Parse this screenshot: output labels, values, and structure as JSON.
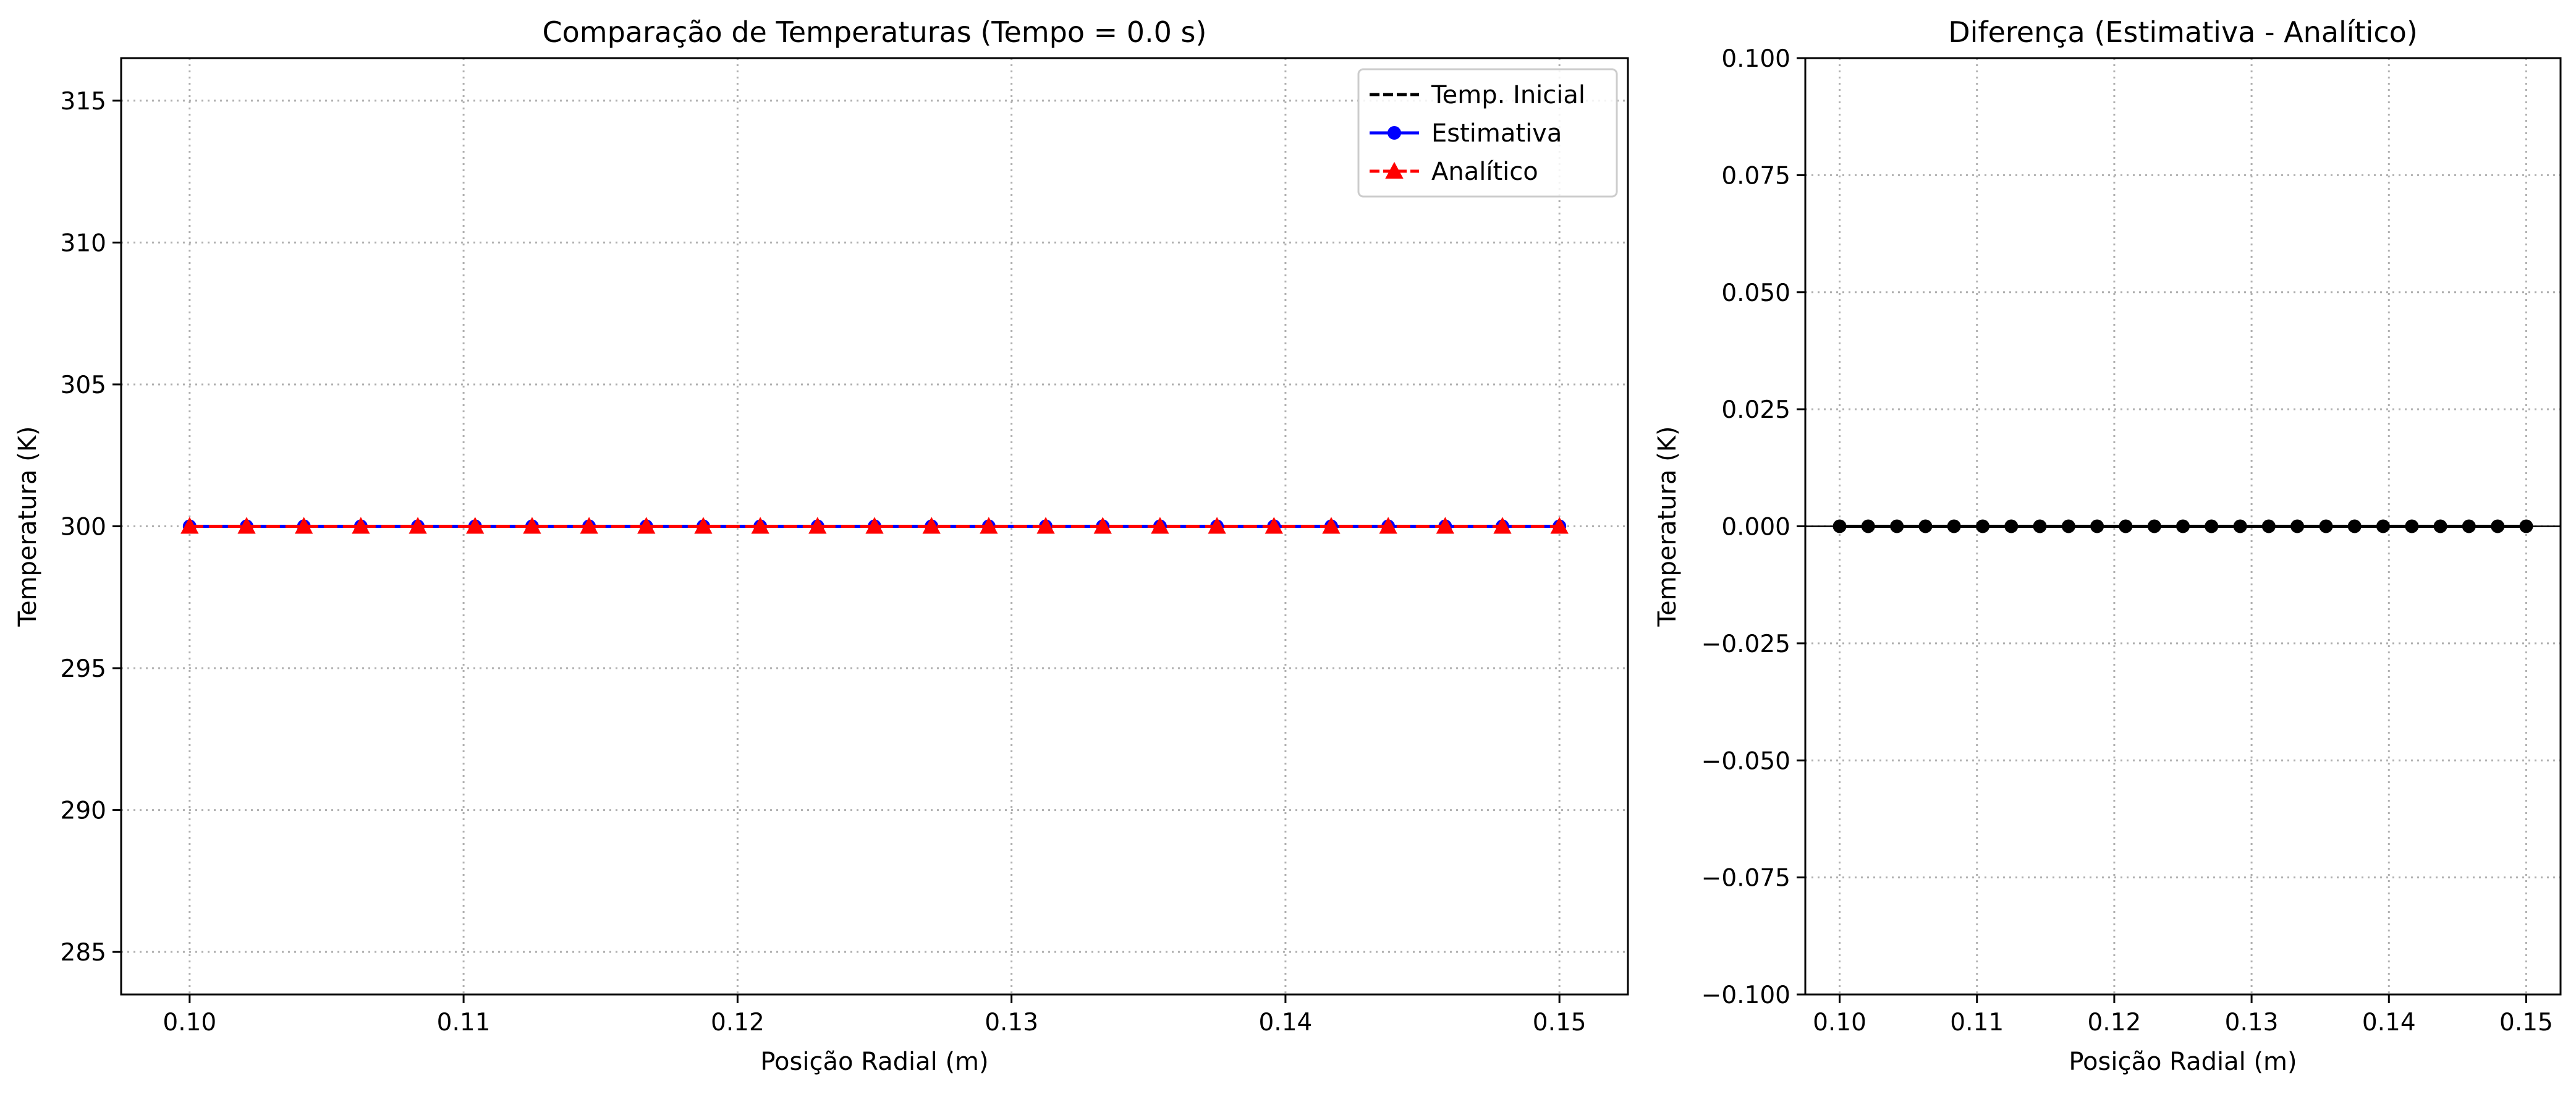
{
  "chart_data": [
    {
      "type": "line",
      "title": "Comparação de Temperaturas (Tempo = 0.0 s)",
      "xlabel": "Posição Radial (m)",
      "ylabel": "Temperatura (K)",
      "xlim": [
        0.0975,
        0.1525
      ],
      "ylim": [
        283.5,
        316.5
      ],
      "xticks": [
        0.1,
        0.11,
        0.12,
        0.13,
        0.14,
        0.15
      ],
      "xtick_labels": [
        "0.10",
        "0.11",
        "0.12",
        "0.13",
        "0.14",
        "0.15"
      ],
      "yticks": [
        285,
        290,
        295,
        300,
        305,
        310,
        315
      ],
      "ytick_labels": [
        "285",
        "290",
        "295",
        "300",
        "305",
        "310",
        "315"
      ],
      "grid": true,
      "legend_position": "top-right",
      "x": [
        0.1,
        0.10208,
        0.10417,
        0.10625,
        0.10833,
        0.11042,
        0.1125,
        0.11458,
        0.11667,
        0.11875,
        0.12083,
        0.12292,
        0.125,
        0.12708,
        0.12917,
        0.13125,
        0.13333,
        0.13542,
        0.1375,
        0.13958,
        0.14167,
        0.14375,
        0.14583,
        0.14792,
        0.15
      ],
      "series": [
        {
          "name": "Temp. Inicial",
          "color": "#000000",
          "line_style": "dashed",
          "marker": "none",
          "values": [
            300,
            300,
            300,
            300,
            300,
            300,
            300,
            300,
            300,
            300,
            300,
            300,
            300,
            300,
            300,
            300,
            300,
            300,
            300,
            300,
            300,
            300,
            300,
            300,
            300
          ]
        },
        {
          "name": "Estimativa",
          "color": "#0000ff",
          "line_style": "solid",
          "marker": "circle",
          "values": [
            300,
            300,
            300,
            300,
            300,
            300,
            300,
            300,
            300,
            300,
            300,
            300,
            300,
            300,
            300,
            300,
            300,
            300,
            300,
            300,
            300,
            300,
            300,
            300,
            300
          ]
        },
        {
          "name": "Analítico",
          "color": "#ff0000",
          "line_style": "dashed",
          "marker": "triangle",
          "values": [
            300,
            300,
            300,
            300,
            300,
            300,
            300,
            300,
            300,
            300,
            300,
            300,
            300,
            300,
            300,
            300,
            300,
            300,
            300,
            300,
            300,
            300,
            300,
            300,
            300
          ]
        }
      ]
    },
    {
      "type": "line",
      "title": "Diferença (Estimativa - Analítico)",
      "xlabel": "Posição Radial (m)",
      "ylabel": "Temperatura (K)",
      "xlim": [
        0.0975,
        0.1525
      ],
      "ylim": [
        -0.1,
        0.1
      ],
      "xticks": [
        0.1,
        0.11,
        0.12,
        0.13,
        0.14,
        0.15
      ],
      "xtick_labels": [
        "0.10",
        "0.11",
        "0.12",
        "0.13",
        "0.14",
        "0.15"
      ],
      "yticks": [
        -0.1,
        -0.075,
        -0.05,
        -0.025,
        0.0,
        0.025,
        0.05,
        0.075,
        0.1
      ],
      "ytick_labels": [
        "−0.100",
        "−0.075",
        "−0.050",
        "−0.025",
        "0.000",
        "0.025",
        "0.050",
        "0.075",
        "0.100"
      ],
      "grid": true,
      "reference_line": 0,
      "x": [
        0.1,
        0.10208,
        0.10417,
        0.10625,
        0.10833,
        0.11042,
        0.1125,
        0.11458,
        0.11667,
        0.11875,
        0.12083,
        0.12292,
        0.125,
        0.12708,
        0.12917,
        0.13125,
        0.13333,
        0.13542,
        0.1375,
        0.13958,
        0.14167,
        0.14375,
        0.14583,
        0.14792,
        0.15
      ],
      "series": [
        {
          "color": "#000000",
          "line_style": "solid",
          "marker": "circle",
          "values": [
            0,
            0,
            0,
            0,
            0,
            0,
            0,
            0,
            0,
            0,
            0,
            0,
            0,
            0,
            0,
            0,
            0,
            0,
            0,
            0,
            0,
            0,
            0,
            0,
            0
          ]
        }
      ]
    }
  ]
}
